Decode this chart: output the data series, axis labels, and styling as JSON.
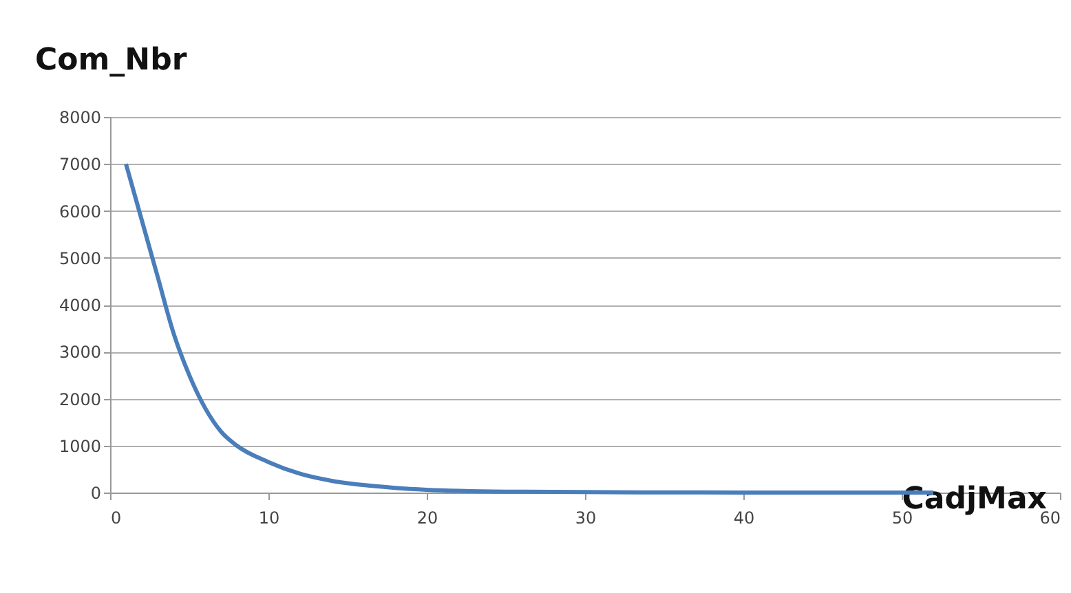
{
  "chart_data": {
    "type": "line",
    "xlabel": "CadjMax",
    "ylabel": "Com_Nbr",
    "x": [
      1,
      2,
      3,
      4,
      5,
      6,
      7,
      8,
      10,
      12,
      14,
      16,
      18,
      20,
      25,
      30,
      40,
      52
    ],
    "series": [
      {
        "color": "#4a7ebb",
        "values": [
          7000,
          5800,
          4600,
          3400,
          2500,
          1800,
          1300,
          1000,
          650,
          400,
          250,
          160,
          100,
          60,
          20,
          10,
          0,
          0
        ]
      }
    ],
    "xlim": [
      0,
      60
    ],
    "xticks": [
      0,
      10,
      20,
      30,
      40,
      50,
      60
    ],
    "ylim": [
      0,
      8000
    ],
    "yticks": [
      0,
      1000,
      2000,
      3000,
      4000,
      5000,
      6000,
      7000,
      8000
    ],
    "grid": "y",
    "marker": "none",
    "line_style": "solid"
  }
}
